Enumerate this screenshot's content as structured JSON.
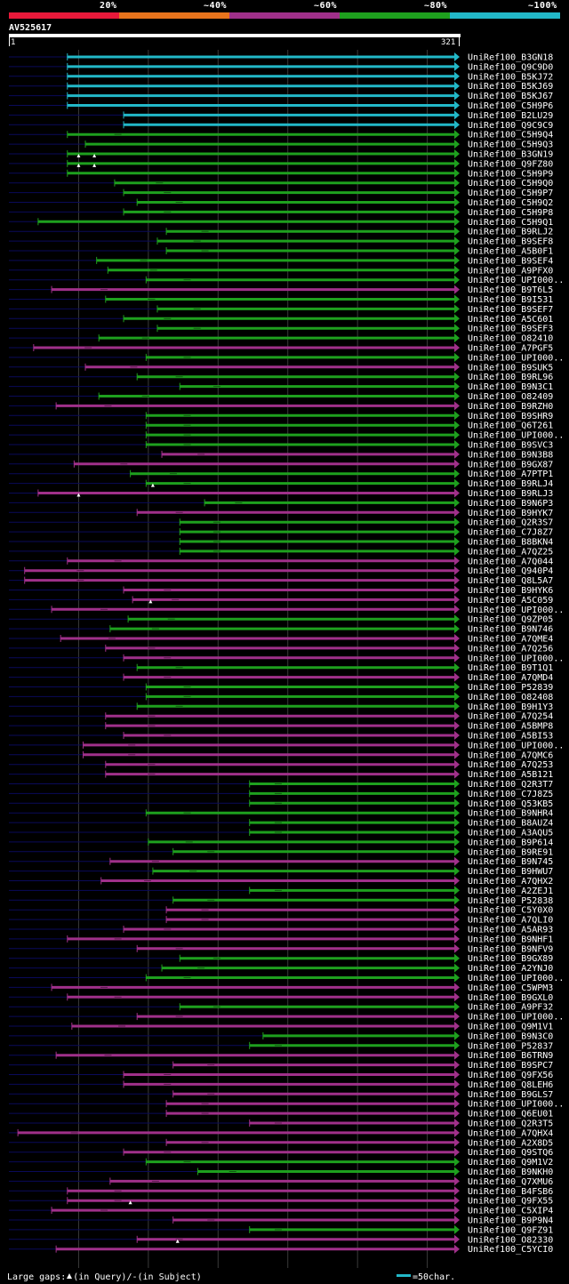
{
  "legend": {
    "labels": [
      "20%",
      "~40%",
      "~60%",
      "~80%",
      "~100%"
    ],
    "colors": [
      "#e8193a",
      "#e8741c",
      "#a0308a",
      "#1ea01e",
      "#22b8c8"
    ]
  },
  "query": {
    "title": "AV525617",
    "start": "1",
    "end": "321"
  },
  "hit_colors": {
    "cyan": "#22b8c8",
    "green": "#1ea01e",
    "purple": "#a0308a",
    "navy": "#0a0a5a"
  },
  "hits": [
    {
      "label": "UniRef100_B3GN18",
      "c": "cyan",
      "s": 0.13,
      "g": 0
    },
    {
      "label": "UniRef100_Q9C9D0",
      "c": "cyan",
      "s": 0.13,
      "g": 0
    },
    {
      "label": "UniRef100_B5KJ72",
      "c": "cyan",
      "s": 0.13,
      "g": 0
    },
    {
      "label": "UniRef100_B5KJ69",
      "c": "cyan",
      "s": 0.13,
      "g": 0
    },
    {
      "label": "UniRef100_B5KJ67",
      "c": "cyan",
      "s": 0.13,
      "g": 0
    },
    {
      "label": "UniRef100_C5H9P6",
      "c": "cyan",
      "s": 0.13,
      "g": 0
    },
    {
      "label": "UniRef100_B2LU29",
      "c": "cyan",
      "s": 0.255,
      "g": 0
    },
    {
      "label": "UniRef100_Q9C9C9",
      "c": "cyan",
      "s": 0.255,
      "g": 0
    },
    {
      "label": "UniRef100_C5H9Q4",
      "c": "green",
      "s": 0.13,
      "g": 1
    },
    {
      "label": "UniRef100_C5H9Q3",
      "c": "green",
      "s": 0.17,
      "g": 0
    },
    {
      "label": "UniRef100_B3GN19",
      "c": "green",
      "s": 0.13,
      "g": 0,
      "tri": [
        0.155,
        0.19
      ]
    },
    {
      "label": "UniRef100_Q9FZ80",
      "c": "green",
      "s": 0.13,
      "g": 0,
      "tri": [
        0.155,
        0.19
      ]
    },
    {
      "label": "UniRef100_C5H9P9",
      "c": "green",
      "s": 0.13,
      "g": 0
    },
    {
      "label": "UniRef100_C5H9Q0",
      "c": "green",
      "s": 0.235,
      "g": 1
    },
    {
      "label": "UniRef100_C5H9P7",
      "c": "green",
      "s": 0.255,
      "g": 1
    },
    {
      "label": "UniRef100_C5H9Q2",
      "c": "green",
      "s": 0.285,
      "g": 1
    },
    {
      "label": "UniRef100_C5H9P8",
      "c": "green",
      "s": 0.255,
      "g": 1
    },
    {
      "label": "UniRef100_C5H9Q1",
      "c": "green",
      "s": 0.065,
      "g": 0
    },
    {
      "label": "UniRef100_B9RLJ2",
      "c": "green",
      "s": 0.35,
      "g": 1
    },
    {
      "label": "UniRef100_B9SEF8",
      "c": "green",
      "s": 0.33,
      "g": 1
    },
    {
      "label": "UniRef100_A5B0F1",
      "c": "green",
      "s": 0.35,
      "g": 1
    },
    {
      "label": "UniRef100_B9SEF4",
      "c": "green",
      "s": 0.195,
      "g": 1
    },
    {
      "label": "UniRef100_A9PFX0",
      "c": "green",
      "s": 0.22,
      "g": 1
    },
    {
      "label": "UniRef100_UPI000..",
      "c": "green",
      "s": 0.305,
      "g": 1
    },
    {
      "label": "UniRef100_B9T6L5",
      "c": "purple",
      "s": 0.095,
      "g": 1
    },
    {
      "label": "UniRef100_B9I531",
      "c": "green",
      "s": 0.215,
      "g": 1
    },
    {
      "label": "UniRef100_B9SEF7",
      "c": "green",
      "s": 0.33,
      "g": 1
    },
    {
      "label": "UniRef100_A5C601",
      "c": "green",
      "s": 0.255,
      "g": 1
    },
    {
      "label": "UniRef100_B9SEF3",
      "c": "green",
      "s": 0.33,
      "g": 1
    },
    {
      "label": "UniRef100_O82410",
      "c": "green",
      "s": 0.2,
      "g": 1
    },
    {
      "label": "UniRef100_A7PGF5",
      "c": "purple",
      "s": 0.055,
      "g": 1
    },
    {
      "label": "UniRef100_UPI000..",
      "c": "green",
      "s": 0.305,
      "g": 1
    },
    {
      "label": "UniRef100_B9SUK5",
      "c": "purple",
      "s": 0.17,
      "g": 1
    },
    {
      "label": "UniRef100_B9RL96",
      "c": "green",
      "s": 0.285,
      "g": 1
    },
    {
      "label": "UniRef100_B9N3C1",
      "c": "green",
      "s": 0.38,
      "g": 1
    },
    {
      "label": "UniRef100_O82409",
      "c": "green",
      "s": 0.2,
      "g": 1
    },
    {
      "label": "UniRef100_B9RZH0",
      "c": "purple",
      "s": 0.105,
      "g": 1
    },
    {
      "label": "UniRef100_B9SHR9",
      "c": "green",
      "s": 0.305,
      "g": 1
    },
    {
      "label": "UniRef100_Q6T261",
      "c": "green",
      "s": 0.305,
      "g": 1
    },
    {
      "label": "UniRef100_UPI000..",
      "c": "green",
      "s": 0.305,
      "g": 1
    },
    {
      "label": "UniRef100_B9SVC3",
      "c": "green",
      "s": 0.305,
      "g": 1
    },
    {
      "label": "UniRef100_B9N3B8",
      "c": "purple",
      "s": 0.34,
      "g": 1
    },
    {
      "label": "UniRef100_B9GX87",
      "c": "purple",
      "s": 0.145,
      "g": 1
    },
    {
      "label": "UniRef100_A7PTP1",
      "c": "green",
      "s": 0.27,
      "g": 1
    },
    {
      "label": "UniRef100_B9RLJ4",
      "c": "green",
      "s": 0.305,
      "g": 1,
      "tri": [
        0.32
      ]
    },
    {
      "label": "UniRef100_B9RLJ3",
      "c": "purple",
      "s": 0.065,
      "g": 0,
      "tri": [
        0.155
      ]
    },
    {
      "label": "UniRef100_B9N6P3",
      "c": "green",
      "s": 0.435,
      "g": 1
    },
    {
      "label": "UniRef100_B9HYK7",
      "c": "purple",
      "s": 0.285,
      "g": 1
    },
    {
      "label": "UniRef100_Q2R3S7",
      "c": "green",
      "s": 0.38,
      "g": 1
    },
    {
      "label": "UniRef100_C7J8Z7",
      "c": "green",
      "s": 0.38,
      "g": 1
    },
    {
      "label": "UniRef100_B8BKN4",
      "c": "green",
      "s": 0.38,
      "g": 1
    },
    {
      "label": "UniRef100_A7QZ25",
      "c": "green",
      "s": 0.38,
      "g": 1
    },
    {
      "label": "UniRef100_A7Q044",
      "c": "purple",
      "s": 0.13,
      "g": 1
    },
    {
      "label": "UniRef100_Q940P4",
      "c": "purple",
      "s": 0.035,
      "g": 1
    },
    {
      "label": "UniRef100_Q8L5A7",
      "c": "purple",
      "s": 0.035,
      "g": 1
    },
    {
      "label": "UniRef100_B9HYK6",
      "c": "purple",
      "s": 0.255,
      "g": 1
    },
    {
      "label": "UniRef100_A5C059",
      "c": "purple",
      "s": 0.275,
      "g": 1,
      "tri": [
        0.315
      ]
    },
    {
      "label": "UniRef100_UPI000..",
      "c": "purple",
      "s": 0.095,
      "g": 1
    },
    {
      "label": "UniRef100_Q9ZP05",
      "c": "green",
      "s": 0.265,
      "g": 1
    },
    {
      "label": "UniRef100_B9N746",
      "c": "green",
      "s": 0.225,
      "g": 1
    },
    {
      "label": "UniRef100_A7QME4",
      "c": "purple",
      "s": 0.115,
      "g": 1
    },
    {
      "label": "UniRef100_A7Q256",
      "c": "purple",
      "s": 0.215,
      "g": 1
    },
    {
      "label": "UniRef100_UPI000..",
      "c": "purple",
      "s": 0.255,
      "g": 1
    },
    {
      "label": "UniRef100_B9T1Q1",
      "c": "green",
      "s": 0.285,
      "g": 1
    },
    {
      "label": "UniRef100_A7QMD4",
      "c": "purple",
      "s": 0.255,
      "g": 1
    },
    {
      "label": "UniRef100_P52839",
      "c": "green",
      "s": 0.305,
      "g": 1
    },
    {
      "label": "UniRef100_O82408",
      "c": "green",
      "s": 0.305,
      "g": 1
    },
    {
      "label": "UniRef100_B9H1Y3",
      "c": "green",
      "s": 0.285,
      "g": 1
    },
    {
      "label": "UniRef100_A7Q254",
      "c": "purple",
      "s": 0.215,
      "g": 1
    },
    {
      "label": "UniRef100_A5BMP8",
      "c": "purple",
      "s": 0.215,
      "g": 1
    },
    {
      "label": "UniRef100_A5BI53",
      "c": "purple",
      "s": 0.255,
      "g": 1
    },
    {
      "label": "UniRef100_UPI000..",
      "c": "purple",
      "s": 0.165,
      "g": 1
    },
    {
      "label": "UniRef100_A7QMC6",
      "c": "purple",
      "s": 0.165,
      "g": 1
    },
    {
      "label": "UniRef100_A7Q253",
      "c": "purple",
      "s": 0.215,
      "g": 1
    },
    {
      "label": "UniRef100_A5B121",
      "c": "purple",
      "s": 0.215,
      "g": 1
    },
    {
      "label": "UniRef100_Q2R3T7",
      "c": "green",
      "s": 0.535,
      "g": 1
    },
    {
      "label": "UniRef100_C7J8Z5",
      "c": "green",
      "s": 0.535,
      "g": 1
    },
    {
      "label": "UniRef100_Q53KB5",
      "c": "green",
      "s": 0.535,
      "g": 1
    },
    {
      "label": "UniRef100_B9NHR4",
      "c": "green",
      "s": 0.305,
      "g": 1
    },
    {
      "label": "UniRef100_B8AUZ4",
      "c": "green",
      "s": 0.535,
      "g": 1
    },
    {
      "label": "UniRef100_A3AQU5",
      "c": "green",
      "s": 0.535,
      "g": 1
    },
    {
      "label": "UniRef100_B9P614",
      "c": "green",
      "s": 0.31,
      "g": 1
    },
    {
      "label": "UniRef100_B9RE91",
      "c": "green",
      "s": 0.365,
      "g": 1
    },
    {
      "label": "UniRef100_B9N745",
      "c": "purple",
      "s": 0.225,
      "g": 1
    },
    {
      "label": "UniRef100_B9HWU7",
      "c": "green",
      "s": 0.32,
      "g": 1
    },
    {
      "label": "UniRef100_A7QHX2",
      "c": "purple",
      "s": 0.205,
      "g": 1
    },
    {
      "label": "UniRef100_A2ZEJ1",
      "c": "green",
      "s": 0.535,
      "g": 1
    },
    {
      "label": "UniRef100_P52838",
      "c": "green",
      "s": 0.365,
      "g": 1
    },
    {
      "label": "UniRef100_C5Y0X0",
      "c": "purple",
      "s": 0.35,
      "g": 1
    },
    {
      "label": "UniRef100_A7QLI0",
      "c": "purple",
      "s": 0.35,
      "g": 1
    },
    {
      "label": "UniRef100_A5AR93",
      "c": "purple",
      "s": 0.255,
      "g": 1
    },
    {
      "label": "UniRef100_B9NHF1",
      "c": "purple",
      "s": 0.13,
      "g": 1
    },
    {
      "label": "UniRef100_B9NFV9",
      "c": "purple",
      "s": 0.285,
      "g": 1
    },
    {
      "label": "UniRef100_B9GX89",
      "c": "green",
      "s": 0.38,
      "g": 1
    },
    {
      "label": "UniRef100_A2YNJ0",
      "c": "green",
      "s": 0.34,
      "g": 1
    },
    {
      "label": "UniRef100_UPI000..",
      "c": "green",
      "s": 0.305,
      "g": 1
    },
    {
      "label": "UniRef100_C5WPM3",
      "c": "purple",
      "s": 0.095,
      "g": 1
    },
    {
      "label": "UniRef100_B9GXL0",
      "c": "purple",
      "s": 0.13,
      "g": 1
    },
    {
      "label": "UniRef100_A9PF32",
      "c": "green",
      "s": 0.38,
      "g": 1
    },
    {
      "label": "UniRef100_UPI000..",
      "c": "purple",
      "s": 0.285,
      "g": 1
    },
    {
      "label": "UniRef100_Q9M1V1",
      "c": "purple",
      "s": 0.14,
      "g": 1
    },
    {
      "label": "UniRef100_B9N3C0",
      "c": "green",
      "s": 0.565,
      "g": 0
    },
    {
      "label": "UniRef100_P52837",
      "c": "green",
      "s": 0.535,
      "g": 1
    },
    {
      "label": "UniRef100_B6TRN9",
      "c": "purple",
      "s": 0.105,
      "g": 1
    },
    {
      "label": "UniRef100_B9SPC7",
      "c": "purple",
      "s": 0.365,
      "g": 1
    },
    {
      "label": "UniRef100_Q9FX56",
      "c": "purple",
      "s": 0.255,
      "g": 1
    },
    {
      "label": "UniRef100_Q8LEH6",
      "c": "purple",
      "s": 0.255,
      "g": 1
    },
    {
      "label": "UniRef100_B9GLS7",
      "c": "purple",
      "s": 0.365,
      "g": 1
    },
    {
      "label": "UniRef100_UPI000..",
      "c": "purple",
      "s": 0.35,
      "g": 1
    },
    {
      "label": "UniRef100_Q6EU01",
      "c": "purple",
      "s": 0.35,
      "g": 1
    },
    {
      "label": "UniRef100_Q2R3T5",
      "c": "purple",
      "s": 0.535,
      "g": 1
    },
    {
      "label": "UniRef100_A7QHX4",
      "c": "purple",
      "s": 0.02,
      "g": 1
    },
    {
      "label": "UniRef100_A2X8D5",
      "c": "purple",
      "s": 0.35,
      "g": 1
    },
    {
      "label": "UniRef100_Q9STQ6",
      "c": "purple",
      "s": 0.255,
      "g": 1
    },
    {
      "label": "UniRef100_Q9M1V2",
      "c": "green",
      "s": 0.305,
      "g": 1
    },
    {
      "label": "UniRef100_B9NKH0",
      "c": "green",
      "s": 0.42,
      "g": 1
    },
    {
      "label": "UniRef100_Q7XMU6",
      "c": "purple",
      "s": 0.225,
      "g": 1
    },
    {
      "label": "UniRef100_B4FSB6",
      "c": "purple",
      "s": 0.13,
      "g": 1
    },
    {
      "label": "UniRef100_Q9FX55",
      "c": "purple",
      "s": 0.13,
      "g": 1,
      "tri": [
        0.27
      ]
    },
    {
      "label": "UniRef100_C5XIP4",
      "c": "purple",
      "s": 0.095,
      "g": 1
    },
    {
      "label": "UniRef100_B9P9N4",
      "c": "purple",
      "s": 0.365,
      "g": 1
    },
    {
      "label": "UniRef100_Q9FZ91",
      "c": "green",
      "s": 0.535,
      "g": 1
    },
    {
      "label": "UniRef100_O82330",
      "c": "purple",
      "s": 0.285,
      "g": 1,
      "tri": [
        0.375
      ]
    },
    {
      "label": "UniRef100_C5YCI0",
      "c": "purple",
      "s": 0.105,
      "g": 0
    }
  ],
  "footer": {
    "prefix": "Large gaps:",
    "query_note": "(in Query)/",
    "subject_note": "(in Subject)",
    "scale_text": "=50char."
  }
}
